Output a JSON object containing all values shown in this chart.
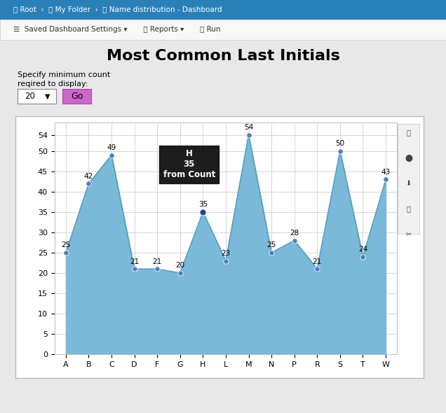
{
  "categories": [
    "A",
    "B",
    "C",
    "D",
    "F",
    "G",
    "H",
    "L",
    "M",
    "N",
    "P",
    "R",
    "S",
    "T",
    "W"
  ],
  "values": [
    25,
    42,
    49,
    21,
    21,
    20,
    35,
    23,
    54,
    25,
    28,
    21,
    50,
    24,
    43
  ],
  "title": "Most Common Last Initials",
  "subtitle_line1": "Specify minimum count",
  "subtitle_line2": "reqired to display:",
  "fill_color": "#7ab9d8",
  "line_color": "#5a9fc0",
  "dot_color": "#4a80c4",
  "background_color": "#e8e8e8",
  "plot_bg_color": "#ffffff",
  "grid_color": "#d0d0d0",
  "nav_bar_color": "#2980b9",
  "menu_bar_color": "#f5f5f5",
  "ylim": [
    0,
    57
  ],
  "yticks": [
    0,
    5,
    10,
    15,
    20,
    25,
    30,
    35,
    40,
    45,
    50,
    54
  ],
  "tooltip_letter": "H",
  "tooltip_value": 35,
  "tooltip_label": "from Count",
  "title_fontsize": 16,
  "annotation_fontsize": 7.5,
  "axis_fontsize": 8
}
